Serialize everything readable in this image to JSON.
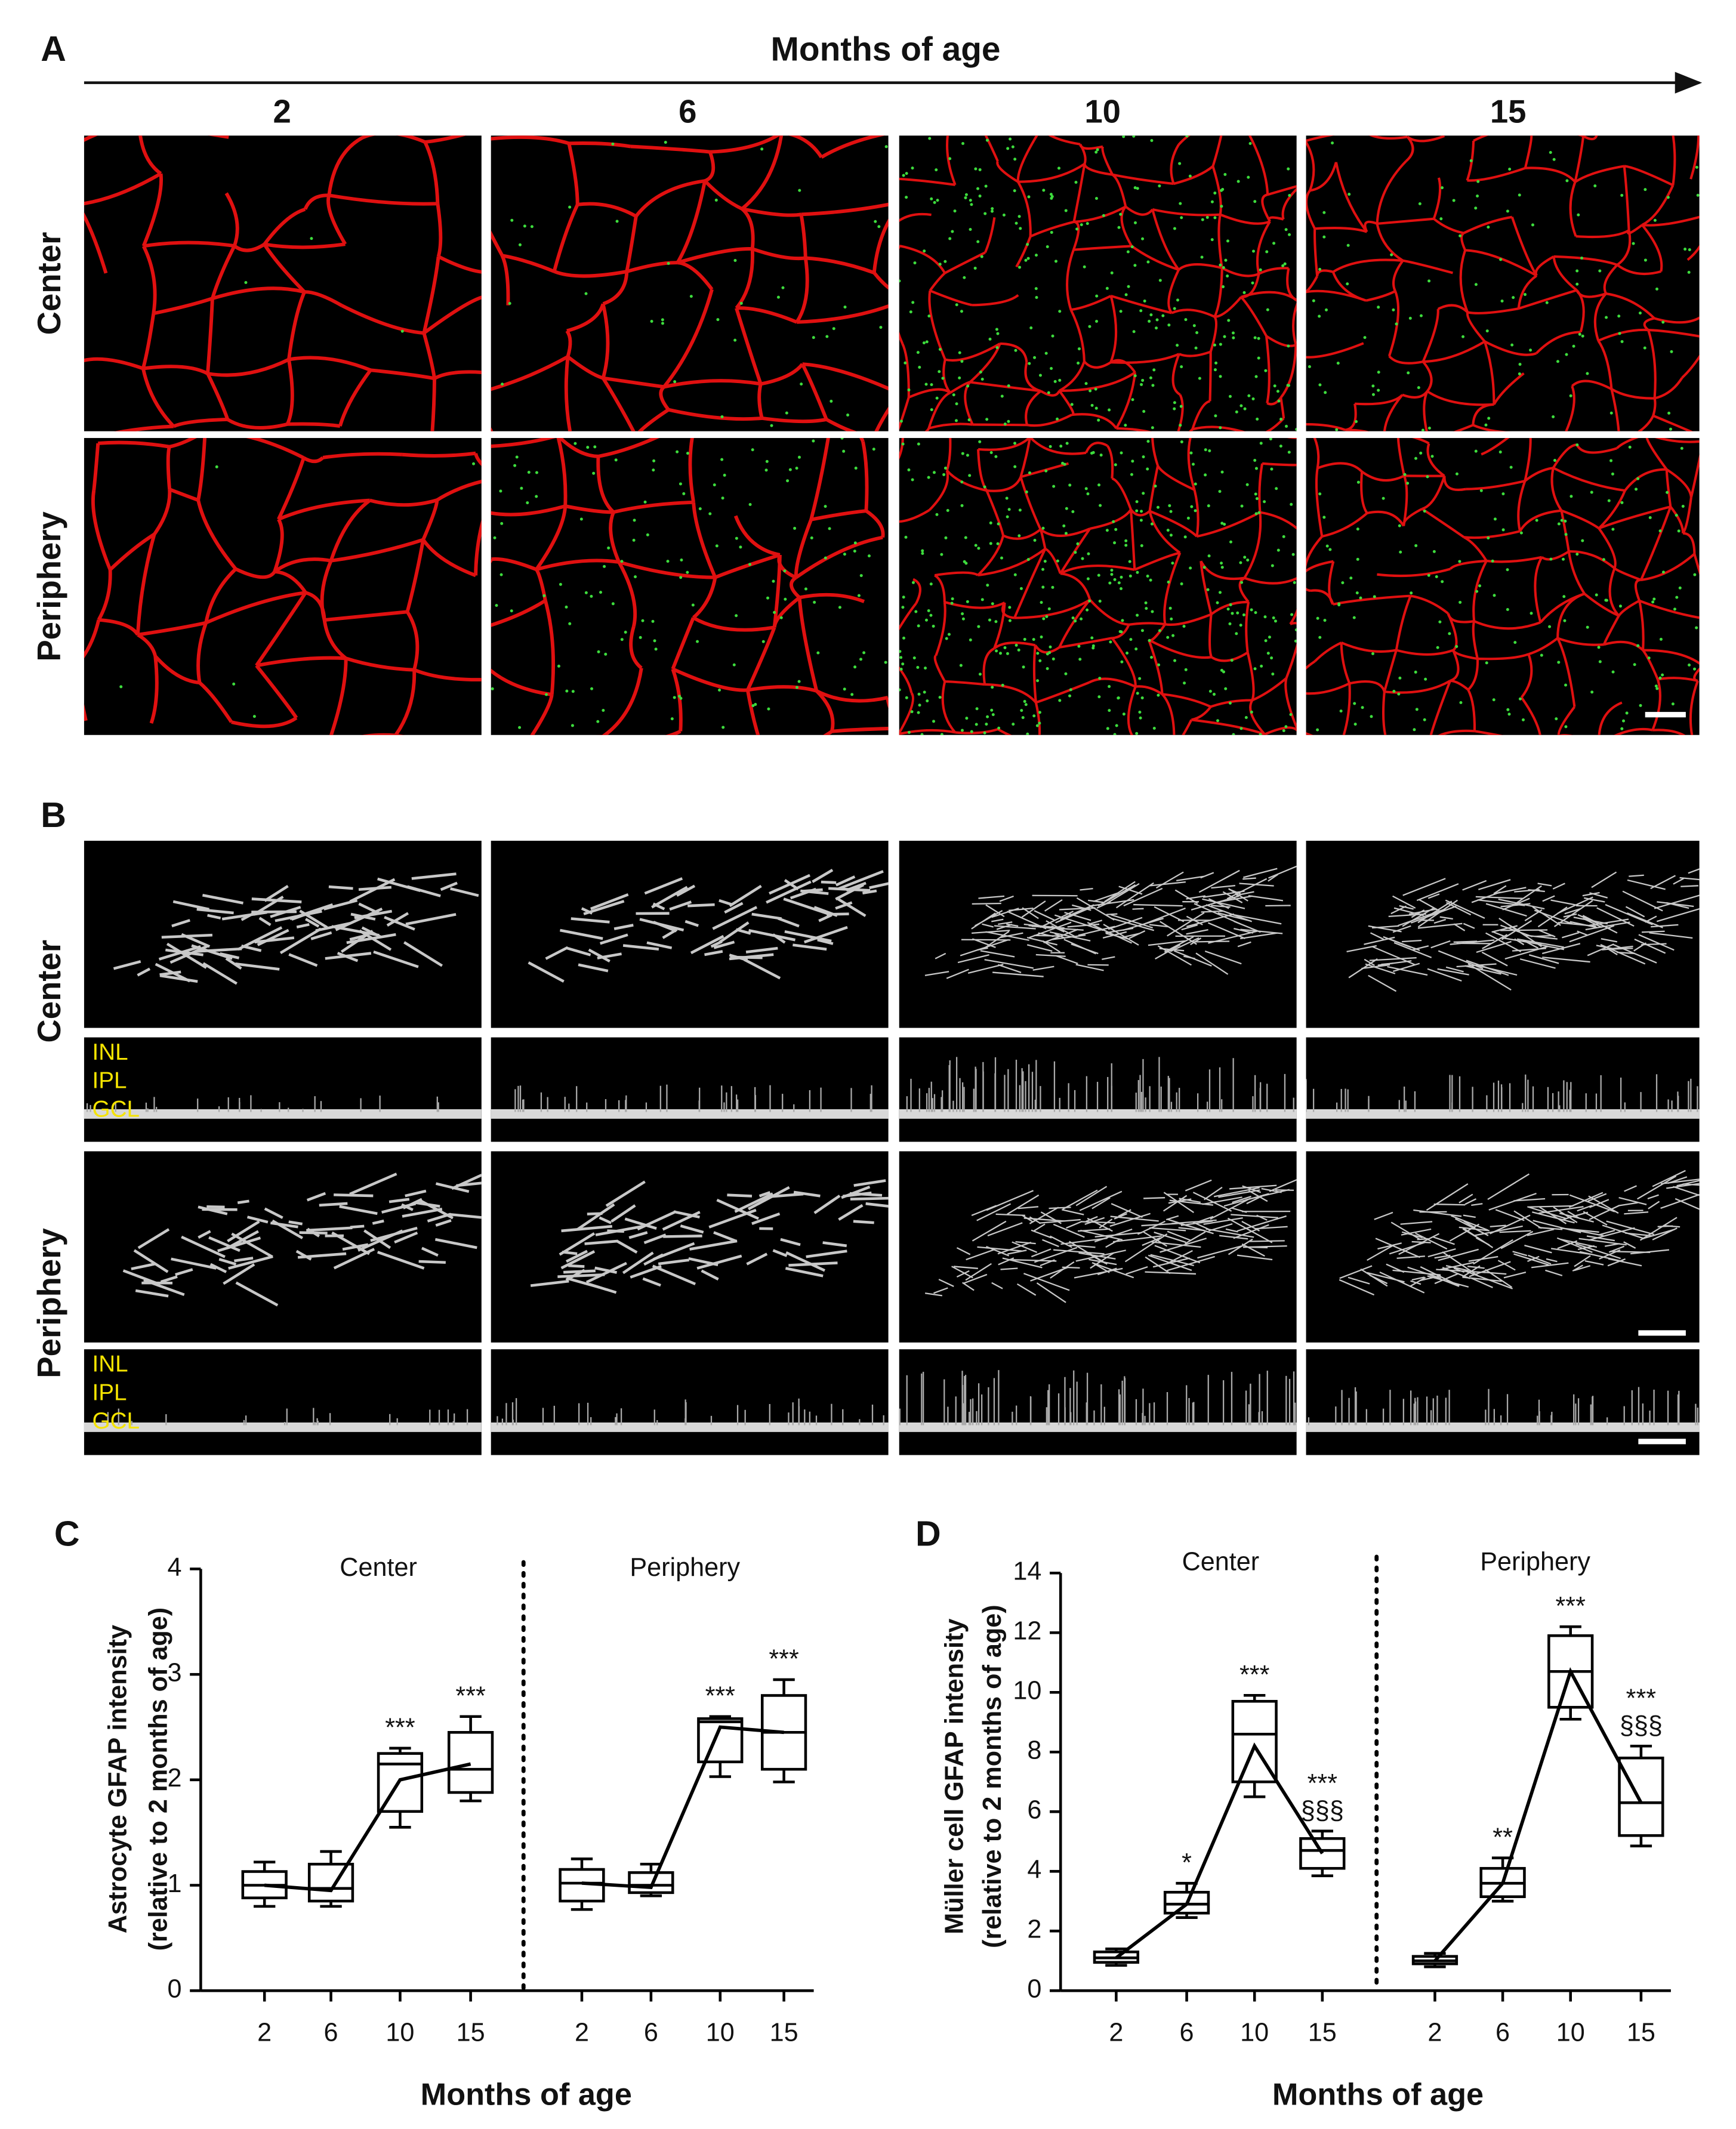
{
  "panel_a": {
    "label": "A",
    "axis_title": "Months of age",
    "columns": [
      "2",
      "6",
      "10",
      "15"
    ],
    "rows": [
      "Center",
      "Periphery"
    ]
  },
  "panel_b": {
    "label": "B",
    "rows": [
      "Center",
      "Periphery"
    ],
    "layers": [
      "INL",
      "IPL",
      "GCL"
    ]
  },
  "chart_data": [
    {
      "type": "box",
      "panel": "C",
      "ylabel": [
        "Astrocyte GFAP intensity",
        "(relative to 2 months of age)"
      ],
      "xlabel": "Months of age",
      "categories": [
        "2",
        "6",
        "10",
        "15"
      ],
      "ylim": [
        0,
        4
      ],
      "yticks": [
        0,
        1,
        2,
        3,
        4
      ],
      "color": "#000000",
      "series": [
        {
          "name": "Center",
          "min": [
            0.8,
            0.8,
            1.55,
            1.8
          ],
          "q1": [
            0.88,
            0.85,
            1.7,
            1.88
          ],
          "median": [
            1.0,
            0.97,
            2.15,
            2.1
          ],
          "q3": [
            1.13,
            1.2,
            2.25,
            2.45
          ],
          "max": [
            1.22,
            1.32,
            2.3,
            2.6
          ],
          "line": [
            1.0,
            0.95,
            2.0,
            2.15
          ],
          "annotations": [
            null,
            null,
            [
              "***"
            ],
            [
              "***"
            ]
          ]
        },
        {
          "name": "Periphery",
          "min": [
            0.77,
            0.9,
            2.03,
            1.98
          ],
          "q1": [
            0.85,
            0.93,
            2.17,
            2.1
          ],
          "median": [
            1.02,
            1.0,
            2.55,
            2.45
          ],
          "q3": [
            1.15,
            1.12,
            2.58,
            2.8
          ],
          "max": [
            1.25,
            1.2,
            2.6,
            2.95
          ],
          "line": [
            1.02,
            0.98,
            2.5,
            2.45
          ],
          "annotations": [
            null,
            null,
            [
              "***"
            ],
            [
              "***"
            ]
          ]
        }
      ]
    },
    {
      "type": "box",
      "panel": "D",
      "ylabel": [
        "Müller cell GFAP intensity",
        "(relative to 2 months of age)"
      ],
      "xlabel": "Months of age",
      "categories": [
        "2",
        "6",
        "10",
        "15"
      ],
      "ylim": [
        0,
        14
      ],
      "yticks": [
        0,
        2,
        4,
        6,
        8,
        10,
        12,
        14
      ],
      "color": "#000000",
      "series": [
        {
          "name": "Center",
          "min": [
            0.85,
            2.45,
            6.5,
            3.85
          ],
          "q1": [
            0.95,
            2.6,
            7.0,
            4.1
          ],
          "median": [
            1.1,
            2.9,
            8.6,
            4.7
          ],
          "q3": [
            1.3,
            3.3,
            9.7,
            5.1
          ],
          "max": [
            1.4,
            3.6,
            9.9,
            5.35
          ],
          "line": [
            1.1,
            2.9,
            8.2,
            4.6
          ],
          "annotations": [
            null,
            [
              "*"
            ],
            [
              "***"
            ],
            [
              "***",
              "§§§"
            ]
          ]
        },
        {
          "name": "Periphery",
          "min": [
            0.8,
            3.0,
            9.1,
            4.85
          ],
          "q1": [
            0.9,
            3.15,
            9.5,
            5.2
          ],
          "median": [
            1.0,
            3.6,
            10.7,
            6.3
          ],
          "q3": [
            1.15,
            4.1,
            11.9,
            7.8
          ],
          "max": [
            1.25,
            4.45,
            12.2,
            8.2
          ],
          "line": [
            1.0,
            3.6,
            10.7,
            6.3
          ],
          "annotations": [
            null,
            [
              "**"
            ],
            [
              "***"
            ],
            [
              "***",
              "§§§"
            ]
          ]
        }
      ]
    }
  ]
}
